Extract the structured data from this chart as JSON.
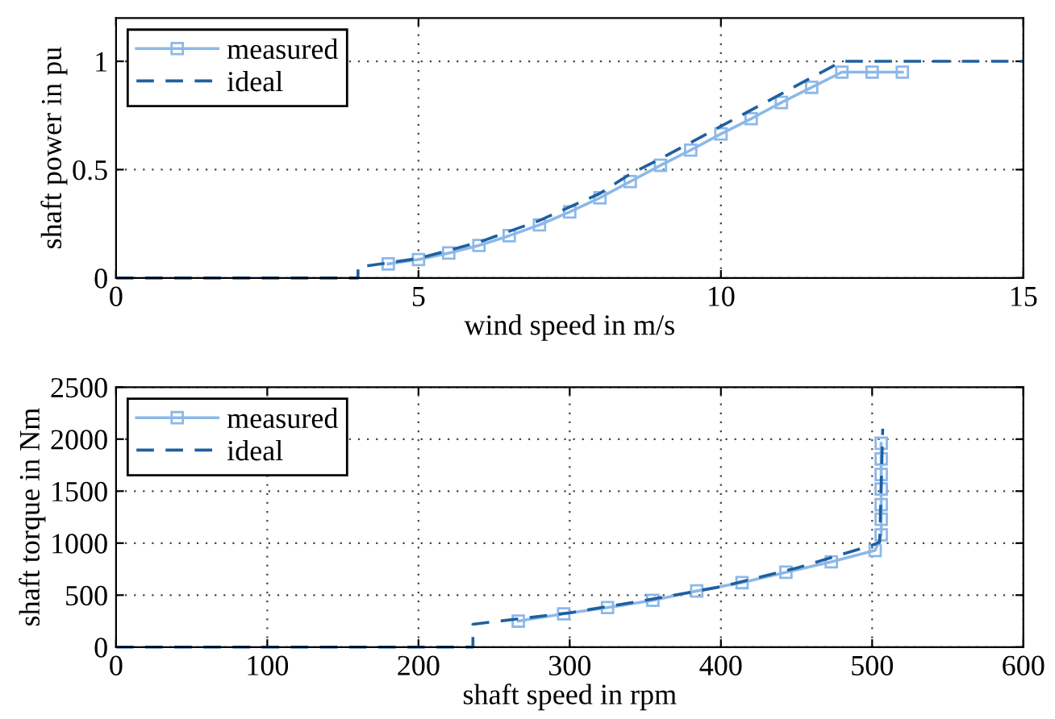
{
  "chart_data": [
    {
      "type": "line",
      "xlabel": "wind speed in m/s",
      "ylabel": "shaft power in pu",
      "xlim": [
        0,
        15
      ],
      "ylim": [
        0,
        1.2
      ],
      "xticks": [
        0,
        5,
        10,
        15
      ],
      "yticks": [
        0,
        {
          "value": 0.5,
          "label": "0.5"
        },
        1
      ],
      "grid": true,
      "legend": "top left",
      "series": [
        {
          "name": "measured",
          "color": "#8cb8e8",
          "marker": "square",
          "line_style": "solid",
          "x": [
            4.5,
            5,
            5.5,
            6,
            6.5,
            7,
            7.5,
            8,
            8.5,
            9,
            9.5,
            10,
            10.5,
            11,
            11.5,
            12,
            12.5,
            13
          ],
          "values": [
            0.065,
            0.085,
            0.115,
            0.15,
            0.195,
            0.245,
            0.305,
            0.37,
            0.445,
            0.52,
            0.59,
            0.665,
            0.735,
            0.81,
            0.88,
            0.95,
            0.95,
            0.95
          ]
        },
        {
          "name": "ideal",
          "color": "#1f5fa0",
          "marker": "none",
          "line_style": "dashed",
          "x": [
            0,
            4,
            4,
            4.5,
            5,
            6,
            7,
            8,
            8.5,
            9,
            10,
            11,
            12,
            15
          ],
          "values": [
            0,
            0,
            0.05,
            0.07,
            0.09,
            0.165,
            0.265,
            0.39,
            0.48,
            0.55,
            0.7,
            0.85,
            1.0,
            1.0
          ]
        }
      ]
    },
    {
      "type": "line",
      "xlabel": "shaft speed in rpm",
      "ylabel": "shaft torque in Nm",
      "xlim": [
        0,
        600
      ],
      "ylim": [
        0,
        2500
      ],
      "xticks": [
        0,
        100,
        200,
        300,
        400,
        500,
        600
      ],
      "yticks": [
        0,
        500,
        1000,
        1500,
        2000,
        2500
      ],
      "grid": true,
      "legend": "top left",
      "series": [
        {
          "name": "measured",
          "color": "#8cb8e8",
          "marker": "square",
          "line_style": "solid",
          "x": [
            266,
            296,
            325,
            355,
            384,
            414,
            443,
            473,
            502,
            506,
            506,
            506,
            506,
            506,
            506,
            506
          ],
          "values": [
            250,
            320,
            380,
            450,
            540,
            620,
            720,
            820,
            930,
            1080,
            1230,
            1370,
            1520,
            1660,
            1810,
            1960
          ]
        },
        {
          "name": "ideal",
          "color": "#1f5fa0",
          "marker": "none",
          "line_style": "dashed",
          "x": [
            0,
            236,
            236,
            300,
            350,
            400,
            450,
            500,
            505,
            507
          ],
          "values": [
            0,
            0,
            220,
            330,
            450,
            580,
            760,
            980,
            1010,
            2100
          ]
        }
      ]
    }
  ]
}
